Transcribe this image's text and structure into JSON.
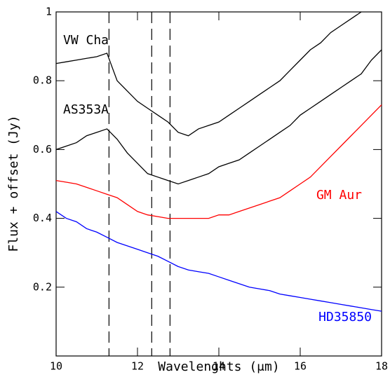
{
  "chart_data": {
    "type": "line",
    "x_label": "Wavelenghts (μm)",
    "y_label": "Flux + offset (Jy)",
    "x": [
      10,
      10.25,
      10.5,
      10.75,
      11,
      11.25,
      11.5,
      11.75,
      12,
      12.25,
      12.5,
      12.75,
      13,
      13.25,
      13.5,
      13.75,
      14,
      14.25,
      14.5,
      14.75,
      15,
      15.25,
      15.5,
      15.75,
      16,
      16.25,
      16.5,
      16.75,
      17,
      17.25,
      17.5,
      17.75,
      18
    ],
    "series": [
      {
        "name": "VW Cha",
        "color": "#000000",
        "values": [
          0.85,
          0.855,
          0.86,
          0.865,
          0.87,
          0.88,
          0.8,
          0.77,
          0.74,
          0.72,
          0.7,
          0.68,
          0.65,
          0.64,
          0.66,
          0.67,
          0.68,
          0.7,
          0.72,
          0.74,
          0.76,
          0.78,
          0.8,
          0.83,
          0.86,
          0.89,
          0.91,
          0.94,
          0.96,
          0.98,
          1.0,
          null,
          null
        ]
      },
      {
        "name": "AS353A",
        "color": "#000000",
        "values": [
          0.6,
          0.61,
          0.62,
          0.64,
          0.65,
          0.66,
          0.63,
          0.59,
          0.56,
          0.53,
          0.52,
          0.51,
          0.5,
          0.51,
          0.52,
          0.53,
          0.55,
          0.56,
          0.57,
          0.59,
          0.61,
          0.63,
          0.65,
          0.67,
          0.7,
          0.72,
          0.74,
          0.76,
          0.78,
          0.8,
          0.82,
          0.86,
          0.89
        ]
      },
      {
        "name": "GM Aur",
        "color": "#ff0000",
        "values": [
          0.51,
          0.505,
          0.5,
          0.49,
          0.48,
          0.47,
          0.46,
          0.44,
          0.42,
          0.41,
          0.405,
          0.4,
          0.4,
          0.4,
          0.4,
          0.4,
          0.41,
          0.41,
          0.42,
          0.43,
          0.44,
          0.45,
          0.46,
          0.48,
          0.5,
          0.52,
          0.55,
          0.58,
          0.61,
          0.64,
          0.67,
          0.7,
          0.73
        ]
      },
      {
        "name": "HD35850",
        "color": "#0000ff",
        "values": [
          0.42,
          0.4,
          0.39,
          0.37,
          0.36,
          0.345,
          0.33,
          0.32,
          0.31,
          0.3,
          0.29,
          0.275,
          0.26,
          0.25,
          0.245,
          0.24,
          0.23,
          0.22,
          0.21,
          0.2,
          0.195,
          0.19,
          0.18,
          0.175,
          0.17,
          0.165,
          0.16,
          0.155,
          0.15,
          0.145,
          0.14,
          0.135,
          0.13
        ]
      }
    ],
    "vlines": [
      11.3,
      12.35,
      12.8
    ],
    "xlim": [
      10,
      18
    ],
    "xticks": [
      10,
      12,
      14,
      16,
      18
    ],
    "ylim": [
      0,
      1
    ],
    "yticks": [
      0.2,
      0.4,
      0.6,
      0.8,
      1
    ]
  }
}
